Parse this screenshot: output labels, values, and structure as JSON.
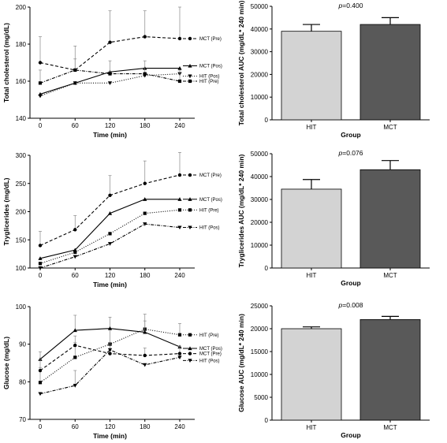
{
  "chart_data": [
    {
      "type": "line",
      "xlabel": "Time (min)",
      "ylabel": "Total cholesterol (mg/dL)",
      "x": [
        0,
        60,
        120,
        180,
        240
      ],
      "xticks": [
        "0",
        "60",
        "120",
        "180",
        "240"
      ],
      "ylim": [
        140,
        200
      ],
      "yticks": [
        "140",
        "160",
        "180",
        "200"
      ],
      "series": [
        {
          "name": "MCT (Pre)",
          "values": [
            170,
            166,
            181,
            184,
            183
          ],
          "err": [
            14,
            13,
            17,
            14,
            17
          ],
          "style": "dashed",
          "marker": "circle"
        },
        {
          "name": "MCT (Pos)",
          "values": [
            153,
            159,
            165,
            167,
            167
          ],
          "err": [
            0,
            0,
            0,
            0,
            0
          ],
          "style": "solid",
          "marker": "triangle-up"
        },
        {
          "name": "HIT (Pos)",
          "values": [
            152,
            159,
            159,
            163,
            164
          ],
          "err": [
            0,
            0,
            0,
            0,
            0
          ],
          "style": "dotted",
          "marker": "triangle-down"
        },
        {
          "name": "HIT (Pre)",
          "values": [
            159,
            166,
            164,
            164,
            160
          ],
          "err": [
            7,
            6,
            7,
            7,
            6
          ],
          "style": "dashdot",
          "marker": "square"
        }
      ]
    },
    {
      "type": "bar",
      "categories": [
        "HIT",
        "MCT"
      ],
      "values": [
        39000,
        42000
      ],
      "errors": [
        3000,
        3000
      ],
      "colors": [
        "#d3d3d3",
        "#595959"
      ],
      "annotation": "p=0.400",
      "xlabel": "Group",
      "ylabel": "Total cholesterol AUC (mg/dL* 240 min)",
      "ylim": [
        0,
        50000
      ],
      "yticks": [
        "0",
        "10000",
        "20000",
        "30000",
        "40000",
        "50000"
      ]
    },
    {
      "type": "line",
      "xlabel": "Time (min)",
      "ylabel": "Tryglicerides (mg/dL)",
      "x": [
        0,
        60,
        120,
        180,
        240
      ],
      "xticks": [
        "0",
        "60",
        "120",
        "180",
        "240"
      ],
      "ylim": [
        100,
        300
      ],
      "yticks": [
        "100",
        "150",
        "200",
        "250",
        "300"
      ],
      "series": [
        {
          "name": "MCT (Pre)",
          "values": [
            140,
            168,
            229,
            250,
            265
          ],
          "err": [
            25,
            25,
            35,
            40,
            40
          ],
          "style": "dashed",
          "marker": "circle"
        },
        {
          "name": "MCT (Pos)",
          "values": [
            117,
            132,
            197,
            222,
            222
          ],
          "err": [
            0,
            0,
            0,
            0,
            0
          ],
          "style": "solid",
          "marker": "triangle-up"
        },
        {
          "name": "HIT (Pre)",
          "values": [
            108,
            128,
            161,
            197,
            203
          ],
          "err": [
            0,
            0,
            0,
            0,
            0
          ],
          "style": "dotted",
          "marker": "square"
        },
        {
          "name": "HIT (Pos)",
          "values": [
            100,
            120,
            143,
            178,
            172
          ],
          "err": [
            0,
            0,
            0,
            0,
            0
          ],
          "style": "dashdot",
          "marker": "triangle-down"
        }
      ]
    },
    {
      "type": "bar",
      "categories": [
        "HIT",
        "MCT"
      ],
      "values": [
        34500,
        43000
      ],
      "errors": [
        4200,
        4000
      ],
      "colors": [
        "#d3d3d3",
        "#595959"
      ],
      "annotation": "p=0.076",
      "xlabel": "Group",
      "ylabel": "Tryglicerides AUC (mg/dL* 240 min)",
      "ylim": [
        0,
        50000
      ],
      "yticks": [
        "0",
        "10000",
        "20000",
        "30000",
        "40000",
        "50000"
      ]
    },
    {
      "type": "line",
      "xlabel": "Time (min)",
      "ylabel": "Glucose (mg/dL)",
      "x": [
        0,
        60,
        120,
        180,
        240
      ],
      "xticks": [
        "0",
        "60",
        "120",
        "180",
        "240"
      ],
      "ylim": [
        70,
        100
      ],
      "yticks": [
        "70",
        "80",
        "90",
        "100"
      ],
      "series": [
        {
          "name": "HIT (Pre)",
          "values": [
            79.8,
            86.5,
            90,
            94,
            92.5
          ],
          "err": [
            4,
            4,
            4,
            4,
            3
          ],
          "style": "dotted",
          "marker": "square"
        },
        {
          "name": "MCT (Pos)",
          "values": [
            86,
            93.7,
            94.2,
            93.2,
            89.3
          ],
          "err": [
            0,
            4,
            3,
            3,
            0
          ],
          "style": "solid",
          "marker": "triangle-up"
        },
        {
          "name": "MCT (Pre)",
          "values": [
            83,
            89.7,
            87.5,
            87,
            87.5
          ],
          "err": [
            5,
            2.5,
            3,
            2,
            2
          ],
          "style": "dashed",
          "marker": "circle"
        },
        {
          "name": "HIT (Pos)",
          "values": [
            76.8,
            79,
            88.5,
            84.5,
            86.5
          ],
          "err": [
            0,
            4,
            0,
            0,
            0
          ],
          "style": "dashdot",
          "marker": "triangle-down"
        }
      ]
    },
    {
      "type": "bar",
      "categories": [
        "HIT",
        "MCT"
      ],
      "values": [
        20000,
        22000
      ],
      "errors": [
        400,
        700
      ],
      "colors": [
        "#d3d3d3",
        "#595959"
      ],
      "annotation": "p=0.008",
      "xlabel": "Group",
      "ylabel": "Glucose AUC (mg/dL* 240 min)",
      "ylim": [
        0,
        25000
      ],
      "yticks": [
        "0",
        "5000",
        "10000",
        "15000",
        "20000",
        "25000"
      ]
    }
  ]
}
